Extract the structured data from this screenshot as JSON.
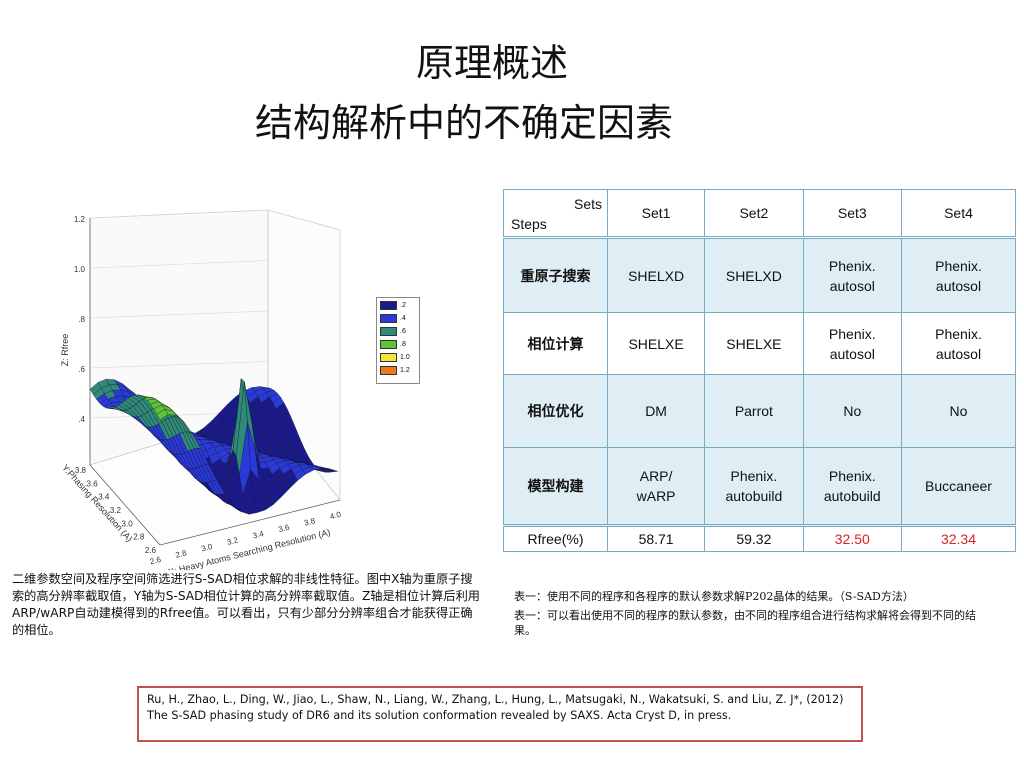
{
  "title": {
    "line1": "原理概述",
    "line2": "结构解析中的不确定因素"
  },
  "table": {
    "corner_sets": "Sets",
    "corner_steps": "Steps",
    "columns": [
      "Set1",
      "Set2",
      "Set3",
      "Set4"
    ],
    "rows": [
      {
        "step": "重原子搜索",
        "cells": [
          [
            "SHELXD"
          ],
          [
            "SHELXD"
          ],
          [
            "Phenix.",
            "autosol"
          ],
          [
            "Phenix.",
            "autosol"
          ]
        ]
      },
      {
        "step": "相位计算",
        "cells": [
          [
            "SHELXE"
          ],
          [
            "SHELXE"
          ],
          [
            "Phenix.",
            "autosol"
          ],
          [
            "Phenix.",
            "autosol"
          ]
        ]
      },
      {
        "step": "相位优化",
        "cells": [
          [
            "DM"
          ],
          [
            "Parrot"
          ],
          [
            "No"
          ],
          [
            "No"
          ]
        ]
      },
      {
        "step": "模型构建",
        "cells": [
          [
            "ARP/",
            "wARP"
          ],
          [
            "Phenix.",
            "autobuild"
          ],
          [
            "Phenix.",
            "autobuild"
          ],
          [
            "Buccaneer"
          ]
        ]
      }
    ],
    "rfree_label": "Rfree(%)",
    "rfree_values": [
      "58.71",
      "59.32",
      "32.50",
      "32.34"
    ],
    "rfree_colors": [
      "#111111",
      "#111111",
      "#e02020",
      "#e02020"
    ],
    "header_shading": "#deeef4",
    "border_color": "#7aa9c4"
  },
  "chart": {
    "z_label": "Z: Rfree",
    "y_label": "Y:Phasing Resolution (A)",
    "x_label": "X: Heavy Atoms Searching Resolution (A)",
    "z_ticks": [
      "1.2",
      "1.0",
      ".8",
      ".6",
      ".4"
    ],
    "x_ticks": [
      "2.6",
      "2.8",
      "3.0",
      "3.2",
      "3.4",
      "3.6",
      "3.8",
      "4.0"
    ],
    "y_ticks": [
      "3.8",
      "3.6",
      "3.4",
      "3.2",
      "3.0",
      "2.8",
      "2.6"
    ],
    "legend": [
      {
        "label": ".2",
        "color": "#1a1a8c"
      },
      {
        "label": ".4",
        "color": "#2a3ad8"
      },
      {
        "label": ".6",
        "color": "#2f8a7a"
      },
      {
        "label": ".8",
        "color": "#5ec23a"
      },
      {
        "label": "1.0",
        "color": "#f0e832"
      },
      {
        "label": "1.2",
        "color": "#f07a1a"
      }
    ]
  },
  "captions": {
    "left": "二维参数空间及程序空间筛选进行S-SAD相位求解的非线性特征。图中X轴为重原子搜索的高分辨率截取值，Y轴为S-SAD相位计算的高分辨率截取值。Z轴是相位计算后利用ARP/wARP自动建模得到的Rfree值。可以看出，只有少部分分辨率组合才能获得正确的相位。",
    "right1": "表一：使用不同的程序和各程序的默认参数求解P202晶体的结果。（S-SAD方法）",
    "right2": "表一：可以看出使用不同的程序的默认参数，由不同的程序组合进行结构求解将会得到不同的结果。"
  },
  "reference": "Ru, H., Zhao, L., Ding, W., Jiao, L., Shaw, N., Liang, W., Zhang, L., Hung, L., Matsugaki, N., Wakatsuki, S. and Liu, Z. J*, (2012) The S-SAD phasing study of DR6 and its solution conformation revealed by SAXS. Acta Cryst D, in press."
}
